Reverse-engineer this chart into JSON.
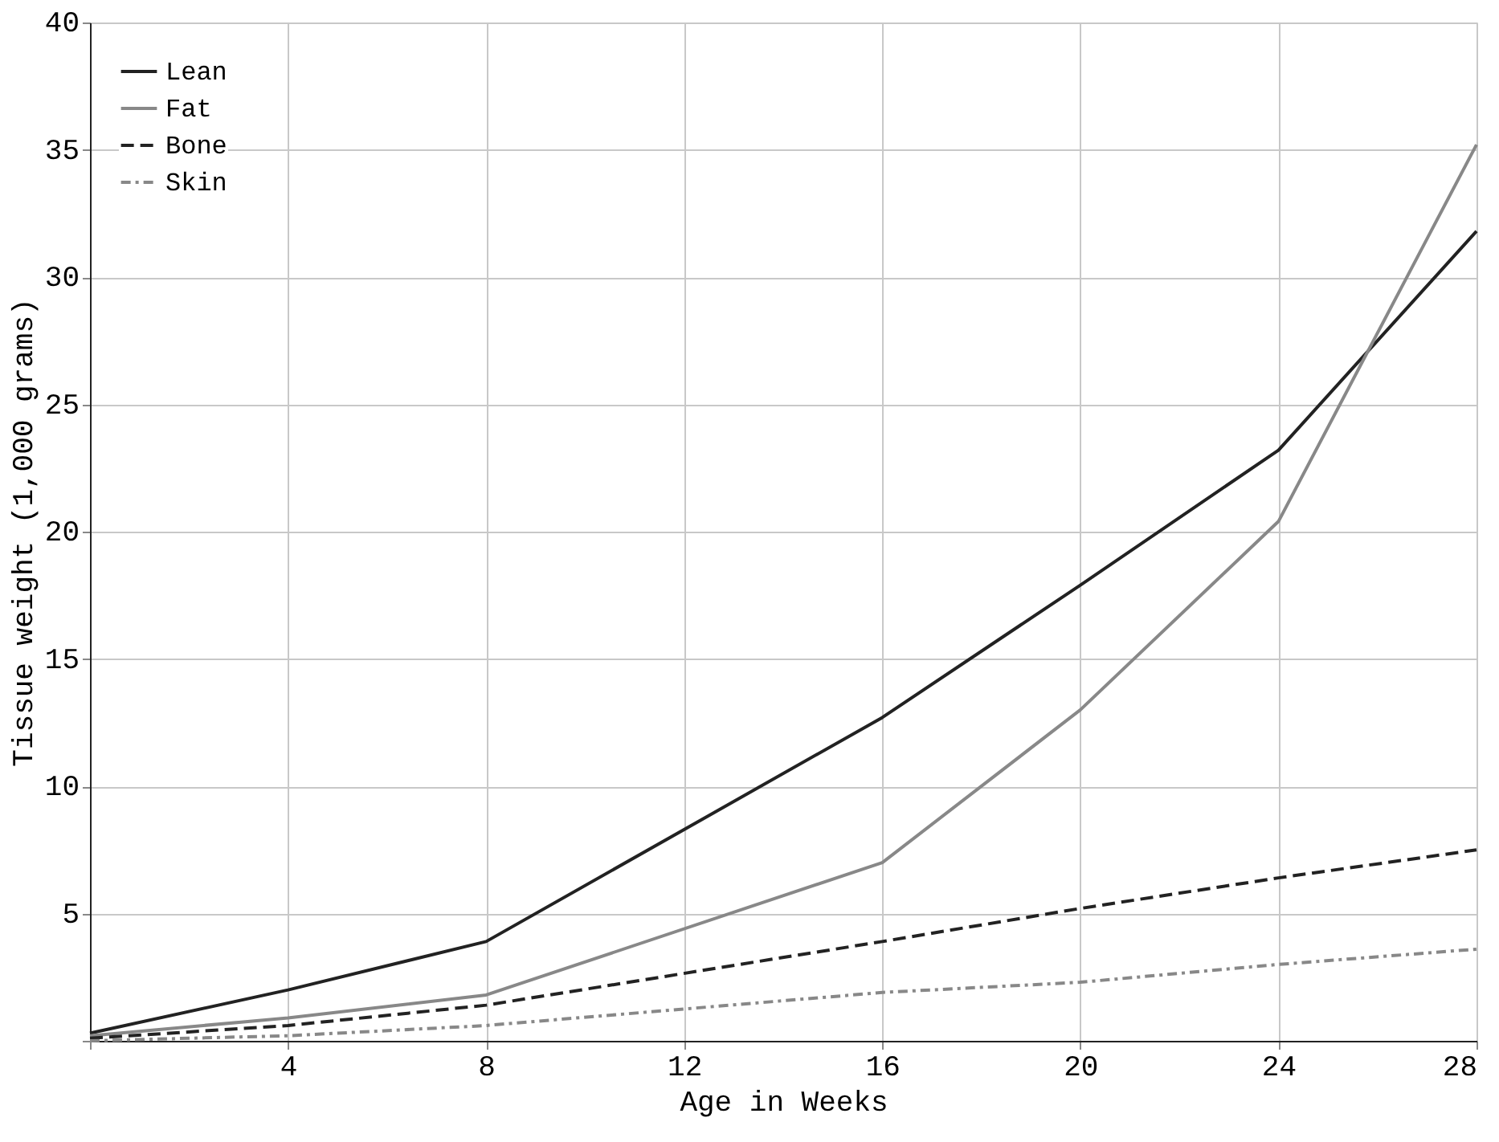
{
  "chart_data": {
    "type": "line",
    "xlabel": "Age in Weeks",
    "ylabel": "Tissue weight (1,000 grams)",
    "x": [
      0,
      4,
      8,
      16,
      20,
      24,
      28
    ],
    "series": [
      {
        "name": "Lean",
        "color": "#222222",
        "line_style": "solid",
        "values": [
          0.3,
          2,
          3.9,
          12.7,
          17.9,
          23.2,
          31.8
        ]
      },
      {
        "name": "Fat",
        "color": "#888888",
        "line_style": "solid",
        "values": [
          0.2,
          0.9,
          1.8,
          7,
          13,
          20.4,
          35.2
        ]
      },
      {
        "name": "Bone",
        "color": "#222222",
        "line_style": "dashed",
        "values": [
          0.1,
          0.6,
          1.4,
          3.9,
          5.2,
          6.4,
          7.5
        ]
      },
      {
        "name": "Skin",
        "color": "#888888",
        "line_style": "dotted",
        "values": [
          0,
          0.2,
          0.6,
          1.9,
          2.3,
          3,
          3.6
        ]
      }
    ],
    "xlim": [
      0,
      28
    ],
    "xticks": [
      {
        "value": 0,
        "label": null
      },
      4,
      8,
      12,
      16,
      20,
      24,
      28
    ],
    "ylim": [
      0,
      40
    ],
    "yticks": [
      {
        "value": 0,
        "label": null
      },
      5,
      10,
      15,
      20,
      25,
      30,
      35,
      40
    ],
    "grid": true,
    "legend": "top left",
    "marker": "none"
  }
}
